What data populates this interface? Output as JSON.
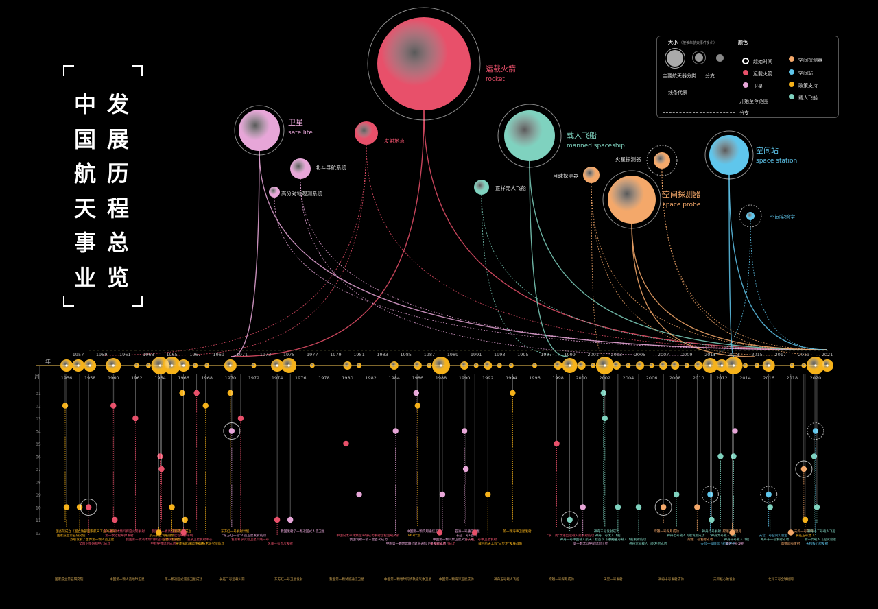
{
  "title": {
    "col1": [
      "中",
      "国",
      "航",
      "天",
      "事",
      "业"
    ],
    "col2": [
      "发",
      "展",
      "历",
      "程",
      "总",
      "览"
    ]
  },
  "categories": {
    "rocket": {
      "cn": "运载火箭",
      "en": "rocket",
      "color": "#e8506a"
    },
    "satellite": {
      "cn": "卫星",
      "en": "satellite",
      "color": "#e7a6d8"
    },
    "manned": {
      "cn": "载人飞船",
      "en": "manned spaceship",
      "color": "#7fd2bf"
    },
    "probe": {
      "cn": "空间探测器",
      "en": "space probe",
      "color": "#f4a86a"
    },
    "station": {
      "cn": "空间站",
      "en": "space station",
      "color": "#5fc6ec"
    }
  },
  "sub_nodes": [
    {
      "label": "发射地点",
      "cat": "rocket"
    },
    {
      "label": "北斗导航系统",
      "cat": "satellite"
    },
    {
      "label": "高分对地观测系统",
      "cat": "satellite"
    },
    {
      "label": "正样无人飞船",
      "cat": "manned"
    },
    {
      "label": "月球探测器",
      "cat": "probe"
    },
    {
      "label": "火星探测器",
      "cat": "probe"
    },
    {
      "label": "空间实验室",
      "cat": "station"
    }
  ],
  "legend": {
    "size_title": "大小",
    "size_note": "（按该年航天事件多少）",
    "color_title": "颜色",
    "main_label": "主要航天器分类",
    "branch_label": "分支",
    "line_title": "线条代表",
    "line_start": "开始至今范围",
    "line_branch": "分支",
    "items": [
      {
        "label": "起始时间",
        "color": "#ffffff"
      },
      {
        "label": "运载火箭",
        "color": "#e8506a"
      },
      {
        "label": "卫星",
        "color": "#e7a6d8"
      },
      {
        "label": "空间探测器",
        "color": "#f4a86a"
      },
      {
        "label": "空间站",
        "color": "#5fc6ec"
      },
      {
        "label": "政策支持",
        "color": "#f6b21a"
      },
      {
        "label": "载人飞船",
        "color": "#7fd2bf"
      }
    ]
  },
  "axis": {
    "year_label": "年",
    "month_label": "月",
    "months": [
      "01",
      "02",
      "03",
      "04",
      "05",
      "06",
      "07",
      "08",
      "09",
      "10",
      "11",
      "12"
    ]
  },
  "chart_data": {
    "type": "timeline-scatter",
    "title": "中国航天事业发展历程总览",
    "xlabel": "年",
    "ylabel": "月",
    "x_range": [
      1956,
      2021
    ],
    "year_ticks_top": [
      1957,
      1959,
      1961,
      1963,
      1965,
      1967,
      1969,
      1971,
      1973,
      1975,
      1977,
      1979,
      1981,
      1983,
      1985,
      1987,
      1989,
      1991,
      1993,
      1995,
      1997,
      1999,
      2001,
      2003,
      2005,
      2007,
      2009,
      2011,
      2013,
      2015,
      2017,
      2019,
      2021
    ],
    "year_ticks_bottom": [
      1956,
      1958,
      1960,
      1962,
      1964,
      1966,
      1968,
      1970,
      1972,
      1974,
      1976,
      1978,
      1980,
      1982,
      1984,
      1986,
      1988,
      1990,
      1992,
      1994,
      1996,
      1998,
      2000,
      2002,
      2004,
      2006,
      2008,
      2010,
      2012,
      2014,
      2016,
      2018,
      2020
    ],
    "years_event_count": [
      [
        1956,
        3
      ],
      [
        1957,
        3
      ],
      [
        1958,
        3
      ],
      [
        1960,
        4
      ],
      [
        1962,
        1
      ],
      [
        1963,
        1
      ],
      [
        1964,
        5
      ],
      [
        1965,
        5
      ],
      [
        1966,
        3
      ],
      [
        1967,
        1
      ],
      [
        1968,
        1
      ],
      [
        1970,
        3
      ],
      [
        1972,
        1
      ],
      [
        1974,
        3
      ],
      [
        1975,
        4
      ],
      [
        1977,
        1
      ],
      [
        1980,
        2
      ],
      [
        1981,
        1
      ],
      [
        1984,
        2
      ],
      [
        1986,
        2
      ],
      [
        1987,
        1
      ],
      [
        1988,
        5
      ],
      [
        1990,
        2
      ],
      [
        1991,
        1
      ],
      [
        1992,
        2
      ],
      [
        1993,
        1
      ],
      [
        1994,
        1
      ],
      [
        1996,
        1
      ],
      [
        1998,
        2
      ],
      [
        1999,
        4
      ],
      [
        2000,
        2
      ],
      [
        2001,
        1
      ],
      [
        2002,
        5
      ],
      [
        2003,
        2
      ],
      [
        2004,
        1
      ],
      [
        2005,
        2
      ],
      [
        2006,
        1
      ],
      [
        2007,
        2
      ],
      [
        2008,
        2
      ],
      [
        2009,
        1
      ],
      [
        2010,
        2
      ],
      [
        2011,
        4
      ],
      [
        2012,
        3
      ],
      [
        2013,
        5
      ],
      [
        2014,
        1
      ],
      [
        2015,
        1
      ],
      [
        2016,
        3
      ],
      [
        2018,
        1
      ],
      [
        2019,
        1
      ],
      [
        2020,
        5
      ],
      [
        2021,
        3
      ]
    ],
    "events": [
      {
        "year": 1956,
        "month": 2,
        "cat": "policy",
        "text": "国务院成立《国立防部国家航天工业的通知》"
      },
      {
        "year": 1956,
        "month": 10,
        "cat": "policy",
        "text": "国家成立第五研究院"
      },
      {
        "year": 1957,
        "month": 10,
        "cat": "policy",
        "text": "苏联发射了世界第一颗人造卫星"
      },
      {
        "year": 1958,
        "month": 10,
        "cat": "rocket",
        "text": "全国卫星研制中心成立",
        "ring": true
      },
      {
        "year": 1960,
        "month": 2,
        "cat": "rocket",
        "text": "第一枚液体燃料探空火箭发射"
      },
      {
        "year": 1960,
        "month": 11,
        "cat": "rocket",
        "text": "第一枚近程导弹发射"
      },
      {
        "year": 1962,
        "month": 3,
        "cat": "rocket",
        "text": "我国第一枚液体燃料探空火箭发射成功"
      },
      {
        "year": 1964,
        "month": 6,
        "cat": "rocket",
        "text": "中程导弹试射成功"
      },
      {
        "year": 1964,
        "month": 7,
        "cat": "rocket",
        "text": "我国第一枚高空生物火箭"
      },
      {
        "year": 1964,
        "month": 12,
        "cat": "policy",
        "text": "航天事业发展规划"
      },
      {
        "year": 1965,
        "month": 10,
        "cat": "policy",
        "text": "卫星工程规划"
      },
      {
        "year": 1966,
        "month": 11,
        "cat": "policy",
        "text": "导弹核武器试验成功"
      },
      {
        "year": 1966,
        "month": 1,
        "cat": "policy",
        "text": "科研院所成立"
      },
      {
        "year": 1966,
        "month": 12,
        "cat": "rocket",
        "text": "远程导弹研制"
      },
      {
        "year": 1967,
        "month": 1,
        "cat": "rocket",
        "text": "酒泉卫星发射中心"
      },
      {
        "year": 1968,
        "month": 2,
        "cat": "policy",
        "text": "空间技术研究院成立"
      },
      {
        "year": 1970,
        "month": 1,
        "cat": "policy",
        "text": "东方红一号发射计划"
      },
      {
        "year": 1970,
        "month": 4,
        "cat": "satellite",
        "text": "\"东方红一号\"人造卫星发射成功",
        "ring": true
      },
      {
        "year": 1971,
        "month": 3,
        "cat": "rocket",
        "text": "发射科学实验卫星实践一号"
      },
      {
        "year": 1974,
        "month": 11,
        "cat": "rocket",
        "text": "风暴一号首次发射"
      },
      {
        "year": 1975,
        "month": 11,
        "cat": "satellite",
        "text": "我国发射了一颗返回式人造卫星"
      },
      {
        "year": 1980,
        "month": 5,
        "cat": "rocket",
        "text": "中国向太平洋预定海域成功发射远程运载火箭"
      },
      {
        "year": 1981,
        "month": 9,
        "cat": "satellite",
        "text": "我国发射一箭三星首次成功"
      },
      {
        "year": 1984,
        "month": 4,
        "cat": "satellite",
        "text": "中国第一颗地球静止轨道通信卫星发射成功"
      },
      {
        "year": 1986,
        "month": 1,
        "cat": "satellite",
        "text": "中国第一颗实用通信卫星"
      },
      {
        "year": 1986,
        "month": 2,
        "cat": "policy",
        "text": "863计划"
      },
      {
        "year": 1988,
        "month": 9,
        "cat": "satellite",
        "text": "中国第一颗气象卫星风云一号"
      },
      {
        "year": 1988,
        "month": 12,
        "cat": "rocket",
        "text": "长征四号首飞成功"
      },
      {
        "year": 1990,
        "month": 4,
        "cat": "satellite",
        "text": "亚洲一号通信卫星"
      },
      {
        "year": 1990,
        "month": 7,
        "cat": "satellite",
        "text": "长征二号E首飞"
      },
      {
        "year": 1991,
        "month": 12,
        "cat": "rocket",
        "text": "东方红二号甲卫星发射"
      },
      {
        "year": 1992,
        "month": 9,
        "cat": "policy",
        "text": "载人航天工程\"三步走\"发展战略"
      },
      {
        "year": 1994,
        "month": 1,
        "cat": "policy",
        "text": "第一颗海事卫星发射"
      },
      {
        "year": 1998,
        "month": 5,
        "cat": "rocket",
        "text": "\"长二丙\"改进型运载火箭发射成功"
      },
      {
        "year": 1999,
        "month": 11,
        "cat": "manned",
        "text": "神舟一号中国载人航天工程首次飞行试验",
        "ring": true
      },
      {
        "year": 2000,
        "month": 10,
        "cat": "satellite",
        "text": "第一颗北斗导航试验卫星"
      },
      {
        "year": 2002,
        "month": 1,
        "cat": "manned",
        "text": "神舟三号发射成功"
      },
      {
        "year": 2002,
        "month": 3,
        "cat": "manned",
        "text": "神舟二号无人飞船"
      },
      {
        "year": 2003,
        "month": 10,
        "cat": "manned",
        "text": "神舟五号载人飞船发射成功"
      },
      {
        "year": 2005,
        "month": 10,
        "cat": "manned",
        "text": "神舟六号载人飞船发射成功"
      },
      {
        "year": 2007,
        "month": 10,
        "cat": "probe",
        "text": "嫦娥一号探月成功",
        "ring": true
      },
      {
        "year": 2008,
        "month": 9,
        "cat": "manned",
        "text": "神舟七号载人飞船发射成功"
      },
      {
        "year": 2010,
        "month": 10,
        "cat": "probe",
        "text": "嫦娥二号发射成功"
      },
      {
        "year": 2011,
        "month": 9,
        "cat": "station",
        "text": "天宫一号目标飞行器发射",
        "ring": true
      },
      {
        "year": 2011,
        "month": 11,
        "cat": "manned",
        "text": "神舟八号发射"
      },
      {
        "year": 2012,
        "month": 6,
        "cat": "manned",
        "text": "神舟九号载人飞船"
      },
      {
        "year": 2013,
        "month": 6,
        "cat": "manned",
        "text": "神舟十号载人飞船"
      },
      {
        "year": 2013,
        "month": 4,
        "cat": "satellite",
        "text": "高分一号发射"
      },
      {
        "year": 2013,
        "month": 12,
        "cat": "probe",
        "text": "嫦娥三号登月"
      },
      {
        "year": 2016,
        "month": 9,
        "cat": "station",
        "text": "天宫二号空间实验室",
        "ring": true
      },
      {
        "year": 2016,
        "month": 10,
        "cat": "manned",
        "text": "神舟十一号发射成功"
      },
      {
        "year": 2018,
        "month": 12,
        "cat": "probe",
        "text": "嫦娥四号发射"
      },
      {
        "year": 2019,
        "month": 7,
        "cat": "probe",
        "text": "天问一号研制",
        "ring": true
      },
      {
        "year": 2019,
        "month": 11,
        "cat": "policy",
        "text": "长征五号复飞"
      },
      {
        "year": 2020,
        "month": 6,
        "cat": "manned",
        "text": "新一代载人飞船试验船"
      },
      {
        "year": 2020,
        "month": 4,
        "cat": "station",
        "text": "天和核心舱发射",
        "ring": true
      },
      {
        "year": 2020,
        "month": 10,
        "cat": "manned",
        "text": "神舟十二号载人飞船"
      }
    ],
    "event_notes": [
      "国家成立第五研究院",
      "中国第一颗人造地球卫星",
      "第一颗返回式遥感卫星成功",
      "长征二号运载火箭",
      "东方红一号卫星发射",
      "我国第一颗试验通信卫星",
      "中国第一颗地球同步轨道气象卫星",
      "中国第一颗海洋卫星成功",
      "神舟五号载人飞船",
      "嫦娥一号探月成功",
      "天宫一号发射",
      "神舟十号发射成功",
      "天和核心舱发射",
      "北斗三号全球组网"
    ]
  }
}
